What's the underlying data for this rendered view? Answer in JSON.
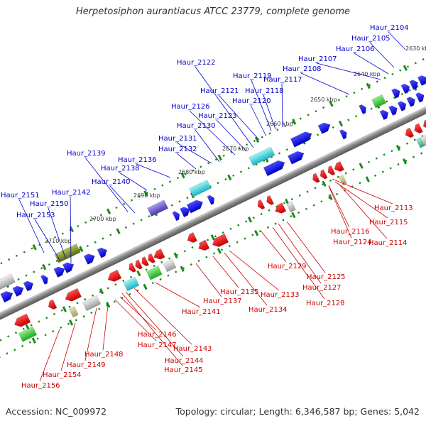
{
  "title": "Herpetosiphon aurantiacus ATCC 23779, complete genome",
  "footer": {
    "accession": "Accession: NC_009972",
    "summary": "Topology: circular; Length: 6,346,587 bp; Genes: 5,042"
  },
  "colors": {
    "forward_label": "#0000cc",
    "reverse_label": "#cc0000",
    "backbone": "#7f7f7f",
    "tick": "#1a8a1a"
  },
  "scale_labels": [
    {
      "kbp": 2630,
      "text": "2630 kbp"
    },
    {
      "kbp": 2640,
      "text": "2640 kbp"
    },
    {
      "kbp": 2650,
      "text": "2650 kbp"
    },
    {
      "kbp": 2660,
      "text": "2660 kbp"
    },
    {
      "kbp": 2670,
      "text": "2670 kbp"
    },
    {
      "kbp": 2680,
      "text": "2680 kbp"
    },
    {
      "kbp": 2690,
      "text": "2690 kbp"
    },
    {
      "kbp": 2700,
      "text": "2700 kbp"
    },
    {
      "kbp": 2710,
      "text": "2710 kbp"
    }
  ],
  "forward_genes": [
    {
      "id": "Haur_2104",
      "text": "Haur_2104"
    },
    {
      "id": "Haur_2105",
      "text": "Haur_2105"
    },
    {
      "id": "Haur_2106",
      "text": "Haur_2106"
    },
    {
      "id": "Haur_2107",
      "text": "Haur_2107"
    },
    {
      "id": "Haur_2108",
      "text": "Haur_2108"
    },
    {
      "id": "Haur_2117",
      "text": "Haur_2117"
    },
    {
      "id": "Haur_2118",
      "text": "Haur_2118"
    },
    {
      "id": "Haur_2119",
      "text": "Haur_2119"
    },
    {
      "id": "Haur_2120",
      "text": "Haur_2120"
    },
    {
      "id": "Haur_2121",
      "text": "Haur_2121"
    },
    {
      "id": "Haur_2122",
      "text": "Haur_2122"
    },
    {
      "id": "Haur_2123",
      "text": "Haur_2123"
    },
    {
      "id": "Haur_2126",
      "text": "Haur_2126"
    },
    {
      "id": "Haur_2130",
      "text": "Haur_2130"
    },
    {
      "id": "Haur_2131",
      "text": "Haur_2131"
    },
    {
      "id": "Haur_2132",
      "text": "Haur_2132"
    },
    {
      "id": "Haur_2136",
      "text": "Haur_2136"
    },
    {
      "id": "Haur_2138",
      "text": "Haur_2138"
    },
    {
      "id": "Haur_2139",
      "text": "Haur_2139"
    },
    {
      "id": "Haur_2140",
      "text": "Haur_2140"
    },
    {
      "id": "Haur_2142",
      "text": "Haur_2142"
    },
    {
      "id": "Haur_2150",
      "text": "Haur_2150"
    },
    {
      "id": "Haur_2151",
      "text": "Haur_2151"
    },
    {
      "id": "Haur_2153",
      "text": "Haur_2153"
    }
  ],
  "reverse_genes": [
    {
      "id": "Haur_2113",
      "text": "Haur_2113"
    },
    {
      "id": "Haur_2114",
      "text": "Haur_2114"
    },
    {
      "id": "Haur_2115",
      "text": "Haur_2115"
    },
    {
      "id": "Haur_2116",
      "text": "Haur_2116"
    },
    {
      "id": "Haur_2124",
      "text": "Haur_2124"
    },
    {
      "id": "Haur_2125",
      "text": "Haur_2125"
    },
    {
      "id": "Haur_2127",
      "text": "Haur_2127"
    },
    {
      "id": "Haur_2128",
      "text": "Haur_2128"
    },
    {
      "id": "Haur_2129",
      "text": "Haur_2129"
    },
    {
      "id": "Haur_2133",
      "text": "Haur_2133"
    },
    {
      "id": "Haur_2134",
      "text": "Haur_2134"
    },
    {
      "id": "Haur_2135",
      "text": "Haur_2135"
    },
    {
      "id": "Haur_2137",
      "text": "Haur_2137"
    },
    {
      "id": "Haur_2141",
      "text": "Haur_2141"
    },
    {
      "id": "Haur_2143",
      "text": "Haur_2143"
    },
    {
      "id": "Haur_2144",
      "text": "Haur_2144"
    },
    {
      "id": "Haur_2145",
      "text": "Haur_2145"
    },
    {
      "id": "Haur_2146",
      "text": "Haur_2146"
    },
    {
      "id": "Haur_2147",
      "text": "Haur_2147"
    },
    {
      "id": "Haur_2148",
      "text": "Haur_2148"
    },
    {
      "id": "Haur_2149",
      "text": "Haur_2149"
    },
    {
      "id": "Haur_2154",
      "text": "Haur_2154"
    },
    {
      "id": "Haur_2156",
      "text": "Haur_2156"
    }
  ]
}
